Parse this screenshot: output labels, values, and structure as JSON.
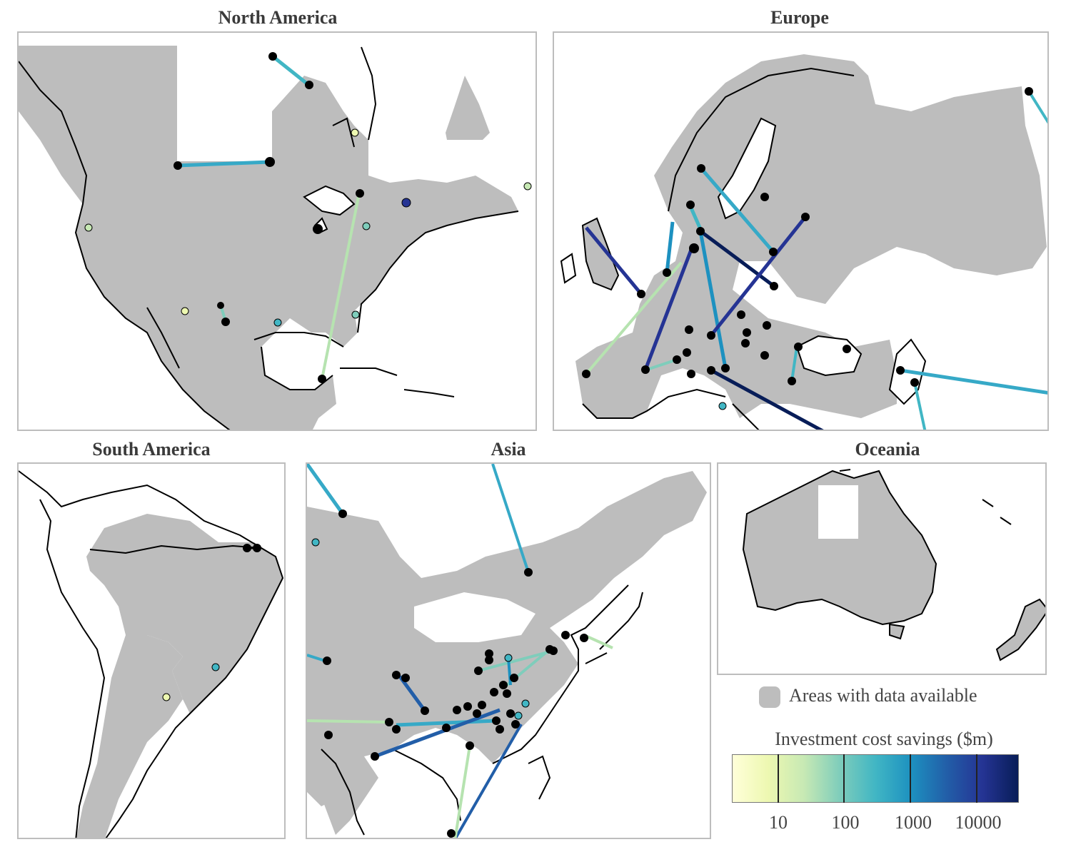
{
  "panels": {
    "north_america": "North America",
    "europe": "Europe",
    "south_america": "South America",
    "asia": "Asia",
    "oceania": "Oceania"
  },
  "legend": {
    "area_label": "Areas with data available",
    "area_color": "#bdbdbd",
    "colorbar_title": "Investment cost savings ($m)",
    "ticks": [
      "10",
      "100",
      "1000",
      "10000"
    ],
    "scale": "log",
    "colormap": [
      "#ffffd9",
      "#edf8b1",
      "#c7e9b4",
      "#7fcdbb",
      "#41b6c4",
      "#1d91c0",
      "#225ea8",
      "#253494",
      "#081d58"
    ]
  }
}
